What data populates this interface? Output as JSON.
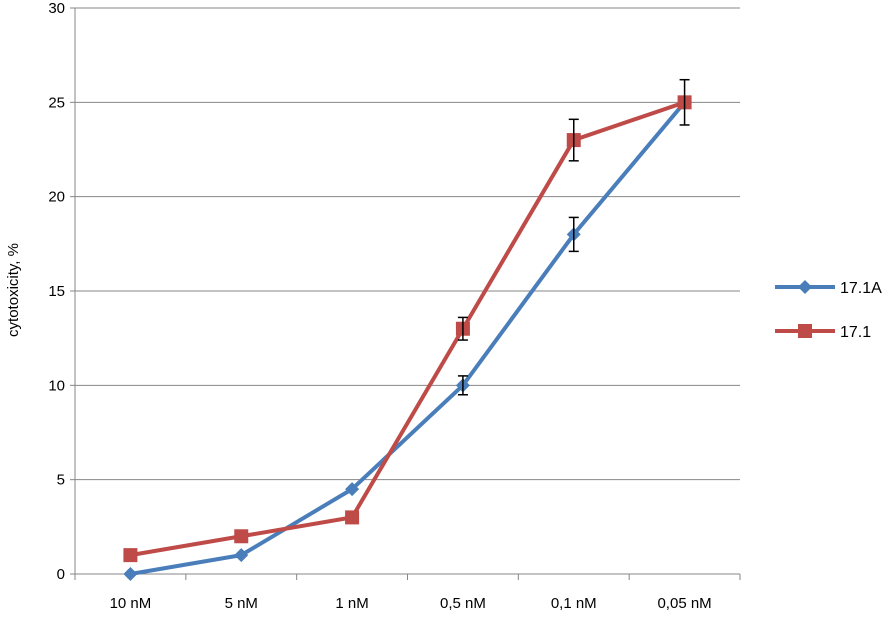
{
  "chart_data": {
    "type": "line",
    "categories": [
      "10 nM",
      "5 nM",
      "1 nM",
      "0,5 nM",
      "0,1 nM",
      "0,05 nM"
    ],
    "ylabel": "cytotoxicity, %",
    "xlabel": "",
    "title": "",
    "ylim": [
      0,
      30
    ],
    "yticks": [
      0,
      5,
      10,
      15,
      20,
      25,
      30
    ],
    "grid": true,
    "legend_position": "right",
    "series": [
      {
        "name": "17.1A",
        "color": "#4a7ebb",
        "marker": "diamond",
        "values": [
          0,
          1,
          4.5,
          10,
          18,
          25
        ],
        "errors": [
          0,
          0,
          0,
          0.5,
          0.9,
          0
        ]
      },
      {
        "name": "17.1",
        "color": "#be4b48",
        "marker": "square",
        "values": [
          1,
          2,
          3,
          13,
          23,
          25
        ],
        "errors": [
          0,
          0,
          0,
          0.6,
          1.1,
          1.2
        ]
      }
    ]
  }
}
